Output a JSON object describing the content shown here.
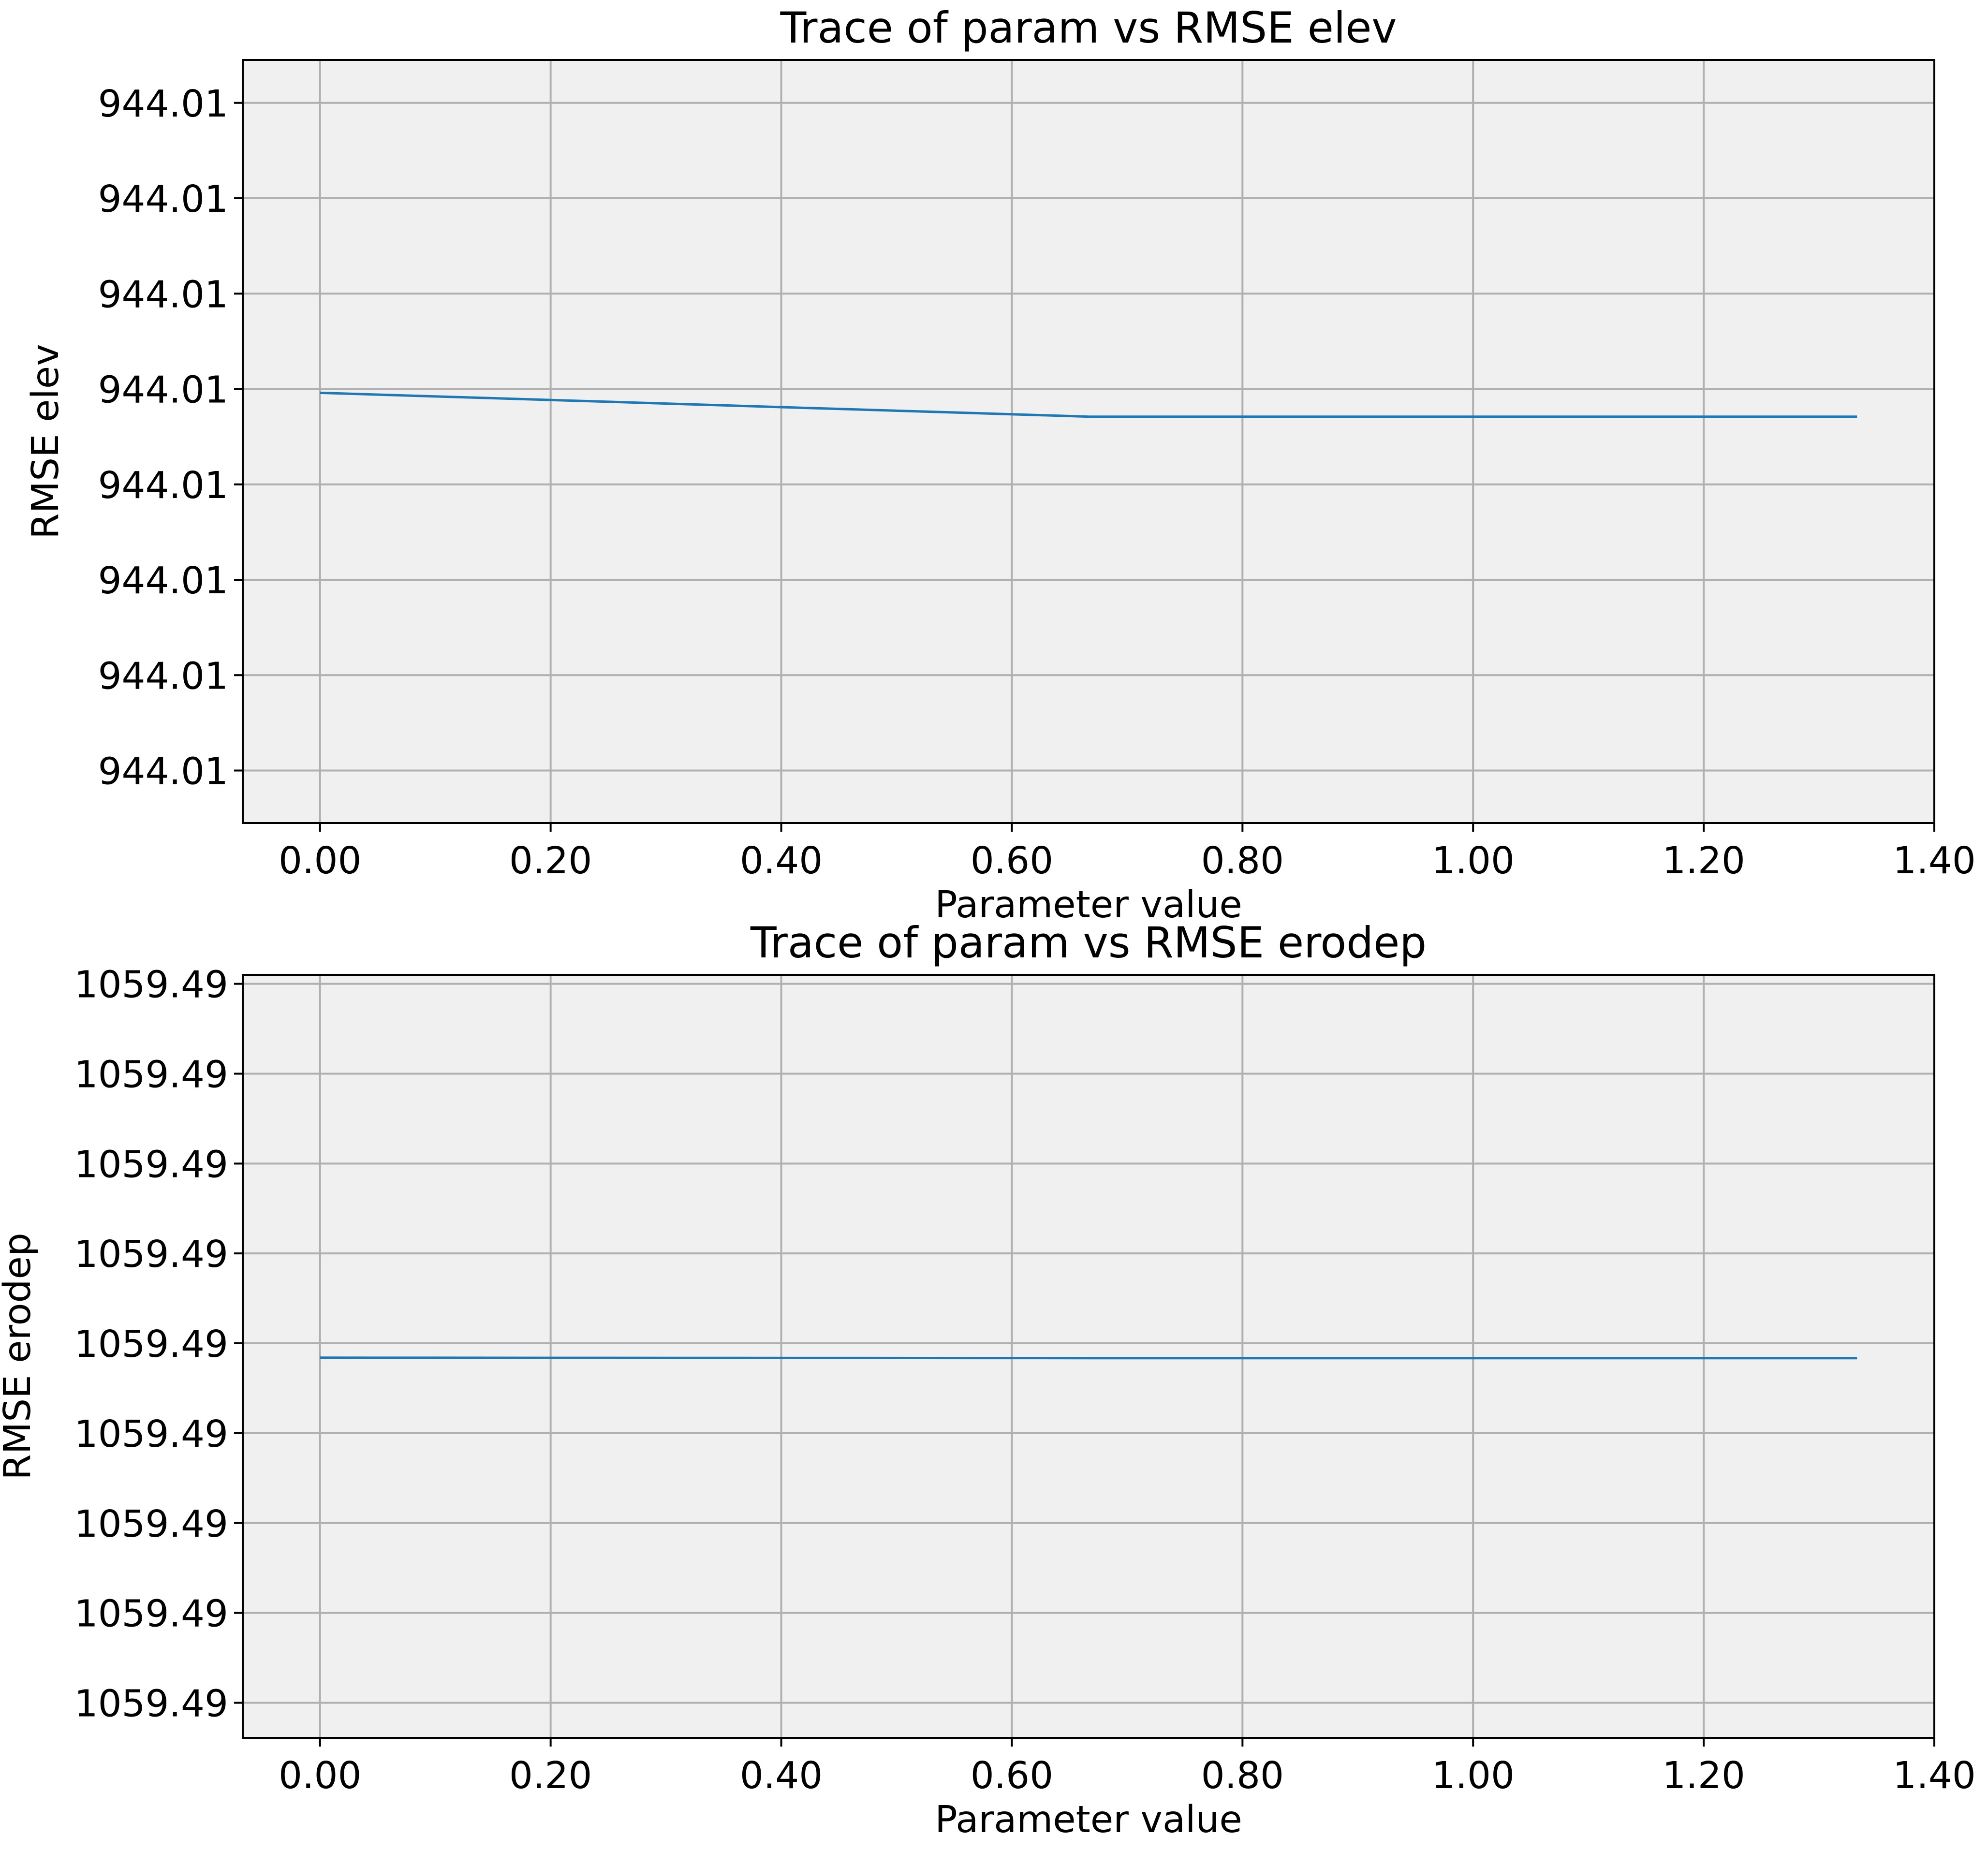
{
  "chart_data": [
    {
      "type": "line",
      "title": "Trace of param vs RMSE elev",
      "xlabel": "Parameter value",
      "ylabel": "RMSE elev",
      "grid": true,
      "background_color": "#f0f0f0",
      "line_color": "#1f77b4",
      "x_tick_values": [
        0.0,
        0.2,
        0.4,
        0.6,
        0.8,
        1.0,
        1.2,
        1.4
      ],
      "x_tick_labels": [
        "0.00",
        "0.20",
        "0.40",
        "0.60",
        "0.80",
        "1.00",
        "1.20",
        "1.40"
      ],
      "xlim": [
        -0.067,
        1.4
      ],
      "y_tick_values": [
        1,
        2,
        3,
        4,
        5,
        6,
        7,
        8
      ],
      "y_tick_labels": [
        "944.01",
        "944.01",
        "944.01",
        "944.01",
        "944.01",
        "944.01",
        "944.01",
        "944.01"
      ],
      "ylim": [
        0.45,
        8.45
      ],
      "series": [
        {
          "x": [
            0.0,
            0.667,
            1.333
          ],
          "y": [
            4.96,
            4.71,
            4.71
          ]
        }
      ]
    },
    {
      "type": "line",
      "title": "Trace of param vs RMSE erodep",
      "xlabel": "Parameter value",
      "ylabel": "RMSE erodep",
      "grid": true,
      "background_color": "#f0f0f0",
      "line_color": "#1f77b4",
      "x_tick_values": [
        0.0,
        0.2,
        0.4,
        0.6,
        0.8,
        1.0,
        1.2,
        1.4
      ],
      "x_tick_labels": [
        "0.00",
        "0.20",
        "0.40",
        "0.60",
        "0.80",
        "1.00",
        "1.20",
        "1.40"
      ],
      "xlim": [
        -0.067,
        1.4
      ],
      "y_tick_values": [
        1,
        2,
        3,
        4,
        5,
        6,
        7,
        8,
        9
      ],
      "y_tick_labels": [
        "1059.49",
        "1059.49",
        "1059.49",
        "1059.49",
        "1059.49",
        "1059.49",
        "1059.49",
        "1059.49",
        "1059.49"
      ],
      "ylim": [
        0.61,
        9.1
      ],
      "series": [
        {
          "x": [
            0.0,
            0.667,
            1.333
          ],
          "y": [
            4.84,
            4.835,
            4.835
          ]
        }
      ]
    }
  ]
}
